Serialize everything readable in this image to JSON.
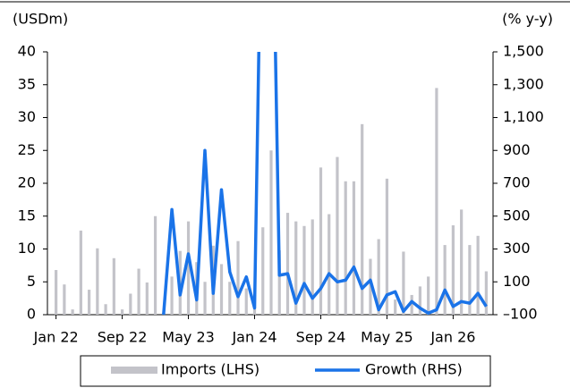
{
  "chart_data": {
    "type": "bar_line",
    "y_label": "(USDm)",
    "y2_label": "(% y-y)",
    "categories": [
      "Jan 22",
      null,
      null,
      null,
      null,
      null,
      null,
      null,
      "Sep 22",
      null,
      null,
      null,
      null,
      null,
      null,
      null,
      "May 23",
      null,
      null,
      null,
      null,
      null,
      null,
      null,
      "Jan 24",
      null,
      null,
      null,
      null,
      null,
      null,
      null,
      "Sep 24",
      null,
      null,
      null,
      null,
      null,
      null,
      null,
      "May 25",
      null,
      null,
      null,
      null,
      null,
      null,
      null,
      "Jan 26",
      null,
      null,
      null,
      null
    ],
    "series": [
      {
        "name": "Imports (LHS)",
        "kind": "bar",
        "color": "#c3c3c9",
        "values": [
          6.8,
          4.6,
          0.8,
          12.8,
          3.8,
          10.1,
          1.6,
          8.6,
          0.8,
          3.2,
          7.0,
          4.9,
          15.0,
          0.3,
          5.8,
          9.7,
          14.2,
          8.0,
          5.0,
          10.5,
          7.7,
          5.0,
          11.2,
          4.0,
          3.0,
          13.3,
          25.0,
          9.8,
          15.5,
          14.2,
          13.5,
          14.5,
          22.4,
          15.3,
          24.0,
          20.3,
          20.3,
          29.0,
          8.5,
          11.5,
          20.7,
          2.3,
          9.6,
          3.0,
          4.3,
          5.8,
          34.5,
          10.6,
          13.6,
          16.0,
          10.6,
          12.0,
          6.6
        ]
      },
      {
        "name": "Growth (RHS)",
        "kind": "line",
        "axis": "y2",
        "color": "#1a73e8",
        "values": [
          null,
          null,
          null,
          null,
          null,
          null,
          null,
          null,
          null,
          null,
          null,
          null,
          null,
          -100,
          540,
          20,
          270,
          -10,
          900,
          30,
          660,
          160,
          10,
          130,
          -60,
          3000,
          3000,
          140,
          150,
          -30,
          90,
          0,
          60,
          150,
          100,
          110,
          190,
          60,
          110,
          -70,
          20,
          40,
          -80,
          -20,
          -60,
          -90,
          -70,
          50,
          -50,
          -20,
          -30,
          30,
          -50
        ]
      }
    ],
    "ylim": [
      0,
      40
    ],
    "yticks": [
      0,
      5,
      10,
      15,
      20,
      25,
      30,
      35,
      40
    ],
    "y2lim": [
      -100,
      1500
    ],
    "y2ticks": [
      {
        "value": -100,
        "label": "–100"
      },
      100,
      300,
      500,
      700,
      900,
      {
        "value": 1100,
        "label": "1,100"
      },
      {
        "value": 1300,
        "label": "1,300"
      },
      {
        "value": 1500,
        "label": "1,500"
      }
    ],
    "legend": "bottom"
  }
}
